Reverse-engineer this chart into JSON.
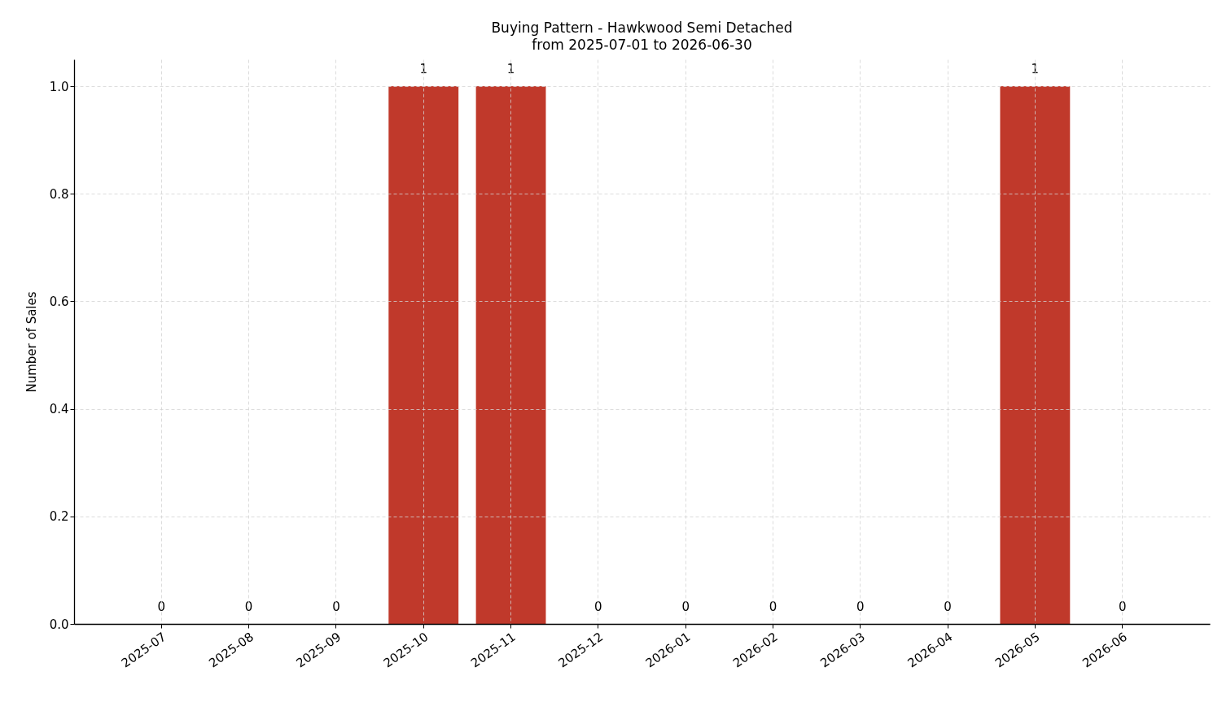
{
  "chart_data": {
    "type": "bar",
    "title": "Buying Pattern - Hawkwood Semi Detached",
    "subtitle": "from 2025-07-01 to 2026-06-30",
    "ylabel": "Number of Sales",
    "categories": [
      "2025-07",
      "2025-08",
      "2025-09",
      "2025-10",
      "2025-11",
      "2025-12",
      "2026-01",
      "2026-02",
      "2026-03",
      "2026-04",
      "2026-05",
      "2026-06"
    ],
    "values": [
      0,
      0,
      0,
      1,
      1,
      0,
      0,
      0,
      0,
      0,
      1,
      0
    ],
    "color": "#c0392b",
    "ylim": [
      0,
      1.05
    ],
    "yticks": [
      {
        "value": 0,
        "label": "0.0"
      },
      {
        "value": 0.2,
        "label": "0.2"
      },
      {
        "value": 0.4,
        "label": "0.4"
      },
      {
        "value": 0.6,
        "label": "0.6"
      },
      {
        "value": 0.8,
        "label": "0.8"
      },
      {
        "value": 1,
        "label": "1.0"
      }
    ],
    "grid": true,
    "data_labels": true
  }
}
